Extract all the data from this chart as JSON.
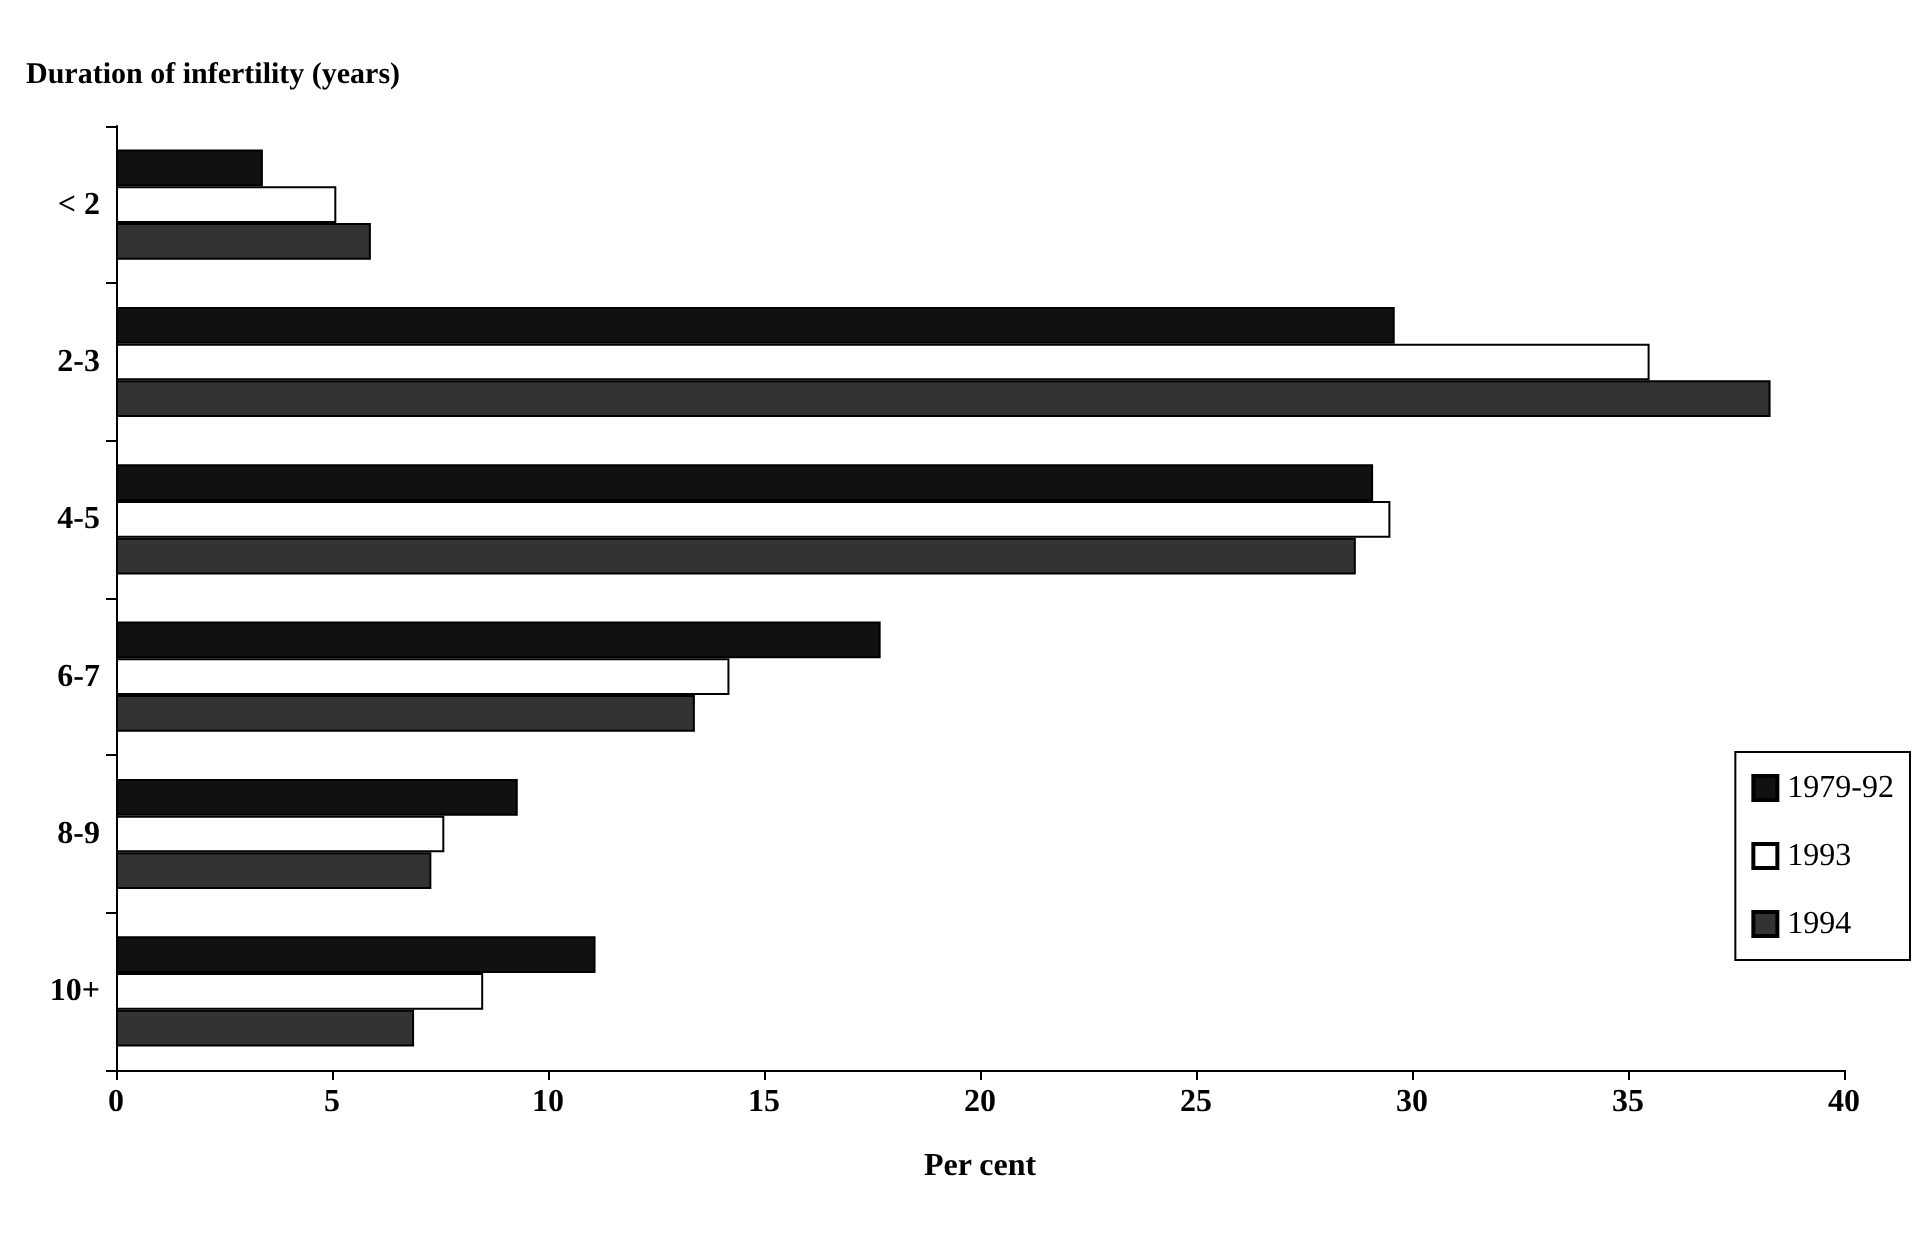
{
  "chart_data": {
    "type": "bar",
    "orientation": "horizontal",
    "ylabel": "Duration of infertility (years)",
    "xlabel": "Per cent",
    "categories": [
      "< 2",
      "2-3",
      "4-5",
      "6-7",
      "8-9",
      "10+"
    ],
    "series": [
      {
        "name": "1979-92",
        "color": "#111111",
        "values": [
          3.4,
          29.6,
          29.1,
          17.7,
          9.3,
          11.1
        ]
      },
      {
        "name": "1993",
        "color": "#ffffff",
        "values": [
          5.1,
          35.5,
          29.5,
          14.2,
          7.6,
          8.5
        ]
      },
      {
        "name": "1994",
        "color": "#333333",
        "values": [
          5.9,
          38.3,
          28.7,
          13.4,
          7.3,
          6.9
        ]
      }
    ],
    "xlim": [
      0,
      40
    ],
    "xticks": [
      0,
      5,
      10,
      15,
      20,
      25,
      30,
      35,
      40
    ],
    "grid": false,
    "legend": "bottom right"
  }
}
